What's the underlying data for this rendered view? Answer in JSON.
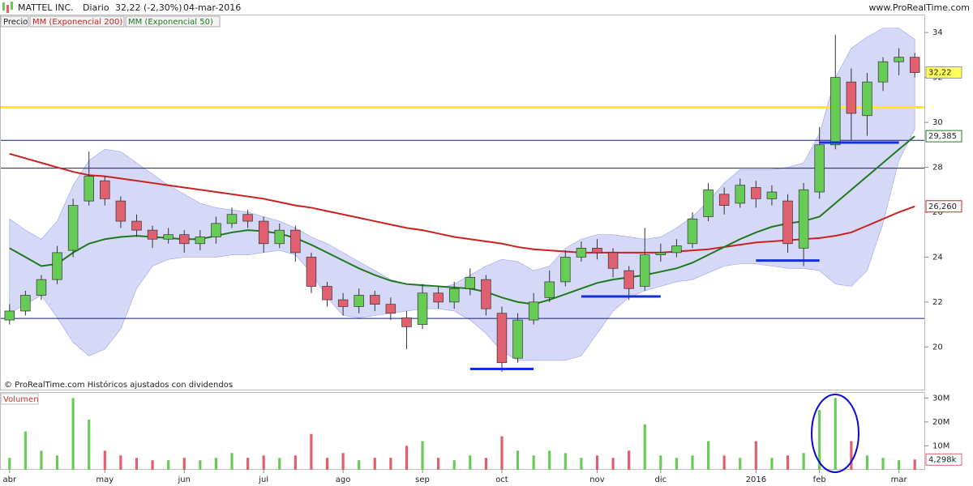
{
  "chart_data": [
    {
      "type": "candlestick",
      "title": "MATTEL INC.",
      "period": "Diario",
      "quote": "32,22 (-2,30%)",
      "date": "04-mar-2016",
      "website": "www.ProRealTime.com",
      "footnote": "© ProRealTime.com  Históricos ajustados con dividendos",
      "categories": [
        "abr",
        null,
        null,
        null,
        null,
        null,
        "may",
        null,
        null,
        null,
        null,
        "jun",
        null,
        null,
        null,
        null,
        "jul",
        null,
        null,
        null,
        null,
        "ago",
        null,
        null,
        null,
        null,
        "sep",
        null,
        null,
        null,
        null,
        "oct",
        null,
        null,
        null,
        null,
        null,
        "nov",
        null,
        null,
        null,
        "dic",
        null,
        null,
        null,
        null,
        null,
        "2016",
        null,
        null,
        null,
        "feb",
        null,
        null,
        null,
        null,
        "mar",
        null
      ],
      "series": [
        {
          "name": "Precio",
          "up_color": "#66cc55",
          "down_color": "#e06070",
          "last_label": "32,22",
          "open": [
            21.2,
            21.6,
            22.3,
            23.0,
            24.3,
            26.5,
            27.4,
            26.5,
            25.6,
            25.2,
            24.8,
            25.0,
            24.6,
            24.9,
            25.5,
            25.9,
            25.6,
            24.6,
            25.2,
            24.0,
            22.7,
            22.1,
            21.8,
            22.3,
            21.9,
            21.3,
            21.0,
            22.4,
            22.0,
            22.6,
            23.0,
            21.5,
            19.5,
            21.2,
            22.2,
            22.9,
            24.0,
            24.4,
            24.2,
            23.4,
            22.7,
            24.1,
            24.2,
            24.6,
            25.8,
            26.8,
            26.4,
            27.1,
            26.6,
            26.5,
            24.4,
            26.9,
            29.0,
            31.8,
            30.3,
            31.8,
            32.7,
            32.9
          ],
          "high": [
            21.9,
            22.5,
            23.2,
            24.5,
            26.6,
            28.7,
            27.6,
            26.7,
            25.9,
            25.4,
            25.3,
            25.2,
            25.2,
            25.8,
            26.2,
            26.1,
            25.8,
            25.5,
            25.4,
            24.2,
            22.9,
            22.4,
            22.6,
            22.5,
            22.2,
            21.6,
            22.8,
            22.7,
            22.9,
            23.5,
            23.2,
            21.8,
            21.5,
            22.4,
            23.4,
            24.3,
            24.7,
            24.8,
            24.4,
            23.6,
            25.3,
            24.6,
            24.8,
            26.0,
            27.3,
            27.1,
            27.5,
            27.4,
            27.2,
            26.8,
            27.3,
            29.8,
            33.9,
            32.4,
            32.2,
            32.9,
            33.3,
            33.1
          ],
          "low": [
            21.0,
            21.4,
            22.1,
            22.8,
            24.0,
            26.3,
            26.3,
            25.3,
            24.9,
            24.4,
            24.6,
            24.2,
            24.3,
            24.6,
            25.3,
            25.3,
            24.2,
            24.4,
            23.8,
            22.4,
            21.8,
            21.4,
            21.5,
            21.6,
            21.2,
            19.9,
            20.8,
            21.7,
            21.7,
            22.3,
            21.4,
            18.9,
            19.3,
            21.0,
            22.0,
            22.7,
            23.8,
            23.9,
            23.1,
            22.1,
            22.5,
            23.8,
            24.0,
            24.4,
            25.6,
            25.9,
            26.2,
            26.2,
            26.3,
            24.2,
            23.6,
            26.6,
            28.8,
            29.2,
            29.4,
            31.4,
            32.1,
            32.0
          ],
          "close": [
            21.6,
            22.3,
            23.0,
            24.2,
            26.3,
            27.6,
            26.6,
            25.6,
            25.2,
            24.8,
            25.0,
            24.6,
            24.9,
            25.5,
            25.9,
            25.6,
            24.6,
            25.2,
            24.2,
            22.7,
            22.1,
            21.8,
            22.3,
            21.9,
            21.5,
            20.9,
            22.4,
            22.0,
            22.6,
            23.1,
            21.7,
            19.3,
            21.2,
            22.0,
            22.9,
            24.0,
            24.4,
            24.2,
            23.5,
            22.6,
            24.1,
            24.2,
            24.5,
            25.7,
            27.0,
            26.3,
            27.2,
            26.6,
            26.9,
            24.6,
            27.0,
            29.0,
            32.0,
            30.4,
            31.8,
            32.7,
            32.9,
            32.22
          ]
        }
      ],
      "lines": [
        {
          "name": "MM (Exponencial 200)",
          "color": "#cc2020",
          "last_label": "26,260",
          "values": [
            28.6,
            28.4,
            28.2,
            28.0,
            27.8,
            27.65,
            27.6,
            27.5,
            27.4,
            27.3,
            27.2,
            27.1,
            27.0,
            26.9,
            26.8,
            26.7,
            26.6,
            26.45,
            26.3,
            26.2,
            26.05,
            25.9,
            25.75,
            25.6,
            25.45,
            25.3,
            25.2,
            25.05,
            24.9,
            24.8,
            24.7,
            24.6,
            24.45,
            24.35,
            24.3,
            24.25,
            24.2,
            24.2,
            24.2,
            24.2,
            24.2,
            24.2,
            24.25,
            24.3,
            24.35,
            24.45,
            24.55,
            24.65,
            24.7,
            24.75,
            24.8,
            24.85,
            24.95,
            25.1,
            25.4,
            25.7,
            26.0,
            26.26
          ]
        },
        {
          "name": "MM (Exponencial 50)",
          "color": "#1e7a1e",
          "last_label": "29,385",
          "values": [
            24.4,
            24.0,
            23.6,
            23.7,
            24.2,
            24.6,
            24.8,
            24.9,
            24.95,
            24.9,
            24.85,
            24.8,
            24.8,
            24.95,
            25.1,
            25.2,
            25.15,
            25.05,
            24.85,
            24.55,
            24.2,
            23.85,
            23.5,
            23.2,
            22.95,
            22.8,
            22.75,
            22.7,
            22.65,
            22.6,
            22.45,
            22.2,
            22.0,
            21.9,
            22.1,
            22.35,
            22.6,
            22.85,
            23.0,
            23.1,
            23.2,
            23.35,
            23.5,
            23.75,
            24.1,
            24.45,
            24.8,
            25.1,
            25.35,
            25.5,
            25.6,
            25.8,
            26.4,
            27.0,
            27.6,
            28.2,
            28.8,
            29.385
          ]
        }
      ],
      "bands": {
        "color": "#c8cbf4",
        "upper": [
          25.7,
          25.2,
          24.8,
          25.6,
          27.2,
          28.3,
          28.8,
          28.7,
          28.2,
          27.7,
          27.2,
          26.8,
          26.4,
          26.2,
          26.1,
          26.0,
          25.8,
          25.6,
          25.3,
          24.9,
          24.6,
          24.2,
          23.8,
          23.4,
          23.0,
          22.8,
          22.7,
          22.6,
          22.8,
          23.2,
          23.6,
          23.9,
          23.8,
          23.4,
          23.6,
          24.4,
          24.8,
          25.0,
          25.0,
          24.9,
          24.8,
          24.9,
          25.3,
          25.8,
          26.5,
          27.3,
          27.9,
          27.9,
          27.9,
          28.0,
          28.2,
          29.5,
          32.0,
          33.3,
          33.8,
          34.2,
          34.2,
          33.7
        ],
        "lower": [
          21.5,
          21.9,
          22.3,
          21.3,
          20.2,
          19.6,
          19.9,
          20.8,
          22.6,
          23.6,
          23.9,
          24.0,
          24.0,
          24.0,
          24.1,
          24.1,
          24.2,
          24.3,
          24.1,
          23.3,
          22.2,
          21.4,
          21.3,
          21.4,
          21.5,
          21.6,
          21.7,
          21.7,
          21.6,
          21.2,
          20.6,
          19.8,
          19.4,
          19.4,
          19.4,
          19.4,
          19.6,
          20.6,
          21.6,
          22.2,
          22.5,
          22.7,
          22.9,
          23.0,
          23.3,
          23.6,
          23.7,
          23.7,
          23.6,
          23.5,
          23.5,
          23.4,
          22.8,
          22.7,
          23.4,
          25.5,
          28.3,
          29.7
        ]
      },
      "levels": [
        {
          "value": 30.67,
          "color": "#ffee00"
        },
        {
          "value": 29.2,
          "color": "#1a1a80"
        },
        {
          "value": 27.96,
          "color": "#1a1a80"
        },
        {
          "value": 21.27,
          "color": "#1a1a80"
        }
      ],
      "supports": [
        {
          "value": 19.02,
          "from": 29,
          "to": 33
        },
        {
          "value": 22.25,
          "from": 36,
          "to": 41
        },
        {
          "value": 23.85,
          "from": 47,
          "to": 51
        },
        {
          "value": 29.1,
          "from": 51,
          "to": 56
        }
      ],
      "support_color": "#1030e0",
      "ylim": [
        18.1,
        34.8
      ],
      "yticks": [
        20,
        22,
        24,
        26,
        28,
        30,
        32,
        34
      ]
    },
    {
      "type": "bar",
      "title": "Volumen",
      "last_label": "4,298k",
      "values": [
        5,
        16,
        8,
        6,
        30,
        21,
        8,
        6,
        5,
        4,
        4,
        5,
        4,
        5,
        7,
        5,
        6,
        5,
        6,
        15,
        5,
        7,
        4,
        5,
        5,
        10,
        12,
        5,
        4,
        6,
        5,
        14,
        8,
        6,
        8,
        7,
        5,
        6,
        5,
        8,
        19,
        6,
        5,
        6,
        12,
        6,
        5,
        12,
        5,
        6,
        7,
        25,
        30,
        12,
        6,
        5,
        4,
        4.298
      ],
      "ylim": [
        0,
        32.5
      ],
      "yticks": [
        {
          "value": 10,
          "label": "10M"
        },
        {
          "value": 20,
          "label": "20M"
        },
        {
          "value": 30,
          "label": "30M"
        }
      ]
    }
  ]
}
